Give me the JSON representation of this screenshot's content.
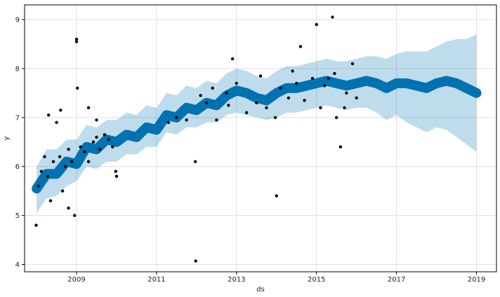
{
  "chart_data": {
    "type": "scatter",
    "title": "",
    "xlabel": "ds",
    "ylabel": "y",
    "xlim": [
      2007.7,
      2019.5
    ],
    "ylim": [
      3.85,
      9.3
    ],
    "grid": true,
    "x_ticks": [
      2009,
      2011,
      2013,
      2015,
      2017,
      2019
    ],
    "x_tick_labels": [
      "2009",
      "2011",
      "2013",
      "2015",
      "2017",
      "2019"
    ],
    "y_ticks": [
      4,
      5,
      6,
      7,
      8,
      9
    ],
    "y_tick_labels": [
      "4",
      "5",
      "6",
      "7",
      "8",
      "9"
    ],
    "colors": {
      "observed": "#000000",
      "forecast": "#0072b2",
      "uncertainty": "#0072b2",
      "grid": "#e0e0e0",
      "axis": "#000000"
    },
    "forecast": {
      "x": [
        2008.0,
        2008.25,
        2008.5,
        2008.75,
        2009.0,
        2009.25,
        2009.5,
        2009.75,
        2010.0,
        2010.25,
        2010.5,
        2010.75,
        2011.0,
        2011.25,
        2011.5,
        2011.75,
        2012.0,
        2012.25,
        2012.5,
        2012.75,
        2013.0,
        2013.25,
        2013.5,
        2013.75,
        2014.0,
        2014.25,
        2014.5,
        2014.75,
        2015.0,
        2015.25,
        2015.5,
        2015.75,
        2016.0,
        2016.25,
        2016.5,
        2016.75,
        2017.0,
        2017.25,
        2017.5,
        2017.75,
        2018.0,
        2018.25,
        2018.5,
        2018.75,
        2019.0
      ],
      "yhat": [
        5.55,
        5.85,
        5.85,
        6.1,
        6.05,
        6.4,
        6.35,
        6.55,
        6.5,
        6.65,
        6.6,
        6.8,
        6.75,
        7.05,
        7.0,
        7.2,
        7.15,
        7.3,
        7.25,
        7.45,
        7.55,
        7.5,
        7.4,
        7.35,
        7.5,
        7.6,
        7.6,
        7.65,
        7.7,
        7.75,
        7.7,
        7.65,
        7.7,
        7.75,
        7.7,
        7.6,
        7.7,
        7.7,
        7.65,
        7.6,
        7.7,
        7.75,
        7.7,
        7.6,
        7.5
      ],
      "band_low": [
        5.05,
        5.35,
        5.4,
        5.6,
        5.7,
        6.0,
        5.95,
        6.1,
        6.1,
        6.25,
        6.25,
        6.4,
        6.4,
        6.7,
        6.65,
        6.8,
        6.8,
        6.9,
        6.9,
        7.05,
        7.1,
        7.05,
        7.0,
        6.95,
        7.0,
        7.1,
        7.1,
        7.15,
        7.2,
        7.25,
        7.2,
        7.15,
        7.2,
        7.2,
        7.1,
        6.95,
        7.05,
        6.9,
        6.8,
        6.7,
        6.8,
        6.75,
        6.6,
        6.45,
        6.3
      ],
      "band_high": [
        6.0,
        6.35,
        6.35,
        6.55,
        6.55,
        6.85,
        6.8,
        6.95,
        6.95,
        7.1,
        7.05,
        7.25,
        7.2,
        7.5,
        7.45,
        7.65,
        7.6,
        7.75,
        7.7,
        7.9,
        8.0,
        7.95,
        7.85,
        7.8,
        7.95,
        8.05,
        8.05,
        8.1,
        8.15,
        8.2,
        8.15,
        8.15,
        8.2,
        8.25,
        8.25,
        8.2,
        8.3,
        8.35,
        8.35,
        8.35,
        8.45,
        8.55,
        8.6,
        8.6,
        8.7
      ]
    },
    "observed": {
      "x": [
        2007.99,
        2008.05,
        2008.12,
        2008.2,
        2008.28,
        2008.35,
        2008.42,
        2008.5,
        2008.58,
        2008.65,
        2008.72,
        2008.8,
        2008.88,
        2008.95,
        2009.0,
        2009.0,
        2009.02,
        2009.1,
        2009.2,
        2009.3,
        2009.42,
        2009.5,
        2009.58,
        2009.7,
        2009.8,
        2009.9,
        2009.98,
        2010.0,
        2011.3,
        2011.5,
        2011.75,
        2011.97,
        2011.98,
        2012.25,
        2012.5,
        2012.75,
        2012.9,
        2013.0,
        2013.25,
        2013.5,
        2013.75,
        2013.97,
        2014.0,
        2014.1,
        2014.3,
        2014.5,
        2014.6,
        2014.9,
        2015.0,
        2015.1,
        2015.3,
        2015.4,
        2015.45,
        2015.5,
        2015.6,
        2015.75,
        2015.9,
        2016.0,
        2008.3,
        2008.6,
        2008.8,
        2009.3,
        2009.5,
        2012.1,
        2012.4,
        2012.8,
        2013.6,
        2014.4,
        2014.7,
        2015.2,
        2015.7
      ],
      "y": [
        4.8,
        5.6,
        5.9,
        6.2,
        5.8,
        5.3,
        6.1,
        6.9,
        6.2,
        5.5,
        6.0,
        6.35,
        6.1,
        5.0,
        8.6,
        8.55,
        7.6,
        6.4,
        6.3,
        6.1,
        6.5,
        6.6,
        6.35,
        6.65,
        6.55,
        6.4,
        5.9,
        5.8,
        6.9,
        7.0,
        6.95,
        6.1,
        4.07,
        7.3,
        6.95,
        7.5,
        8.2,
        7.7,
        7.1,
        7.3,
        7.2,
        7.0,
        5.4,
        7.6,
        7.4,
        7.7,
        8.45,
        7.8,
        8.9,
        7.2,
        7.8,
        9.05,
        7.9,
        7.0,
        6.4,
        7.5,
        8.1,
        7.4,
        7.05,
        7.15,
        5.15,
        7.2,
        6.95,
        7.45,
        7.6,
        7.25,
        7.85,
        7.95,
        7.35,
        7.65,
        7.2
      ]
    }
  }
}
